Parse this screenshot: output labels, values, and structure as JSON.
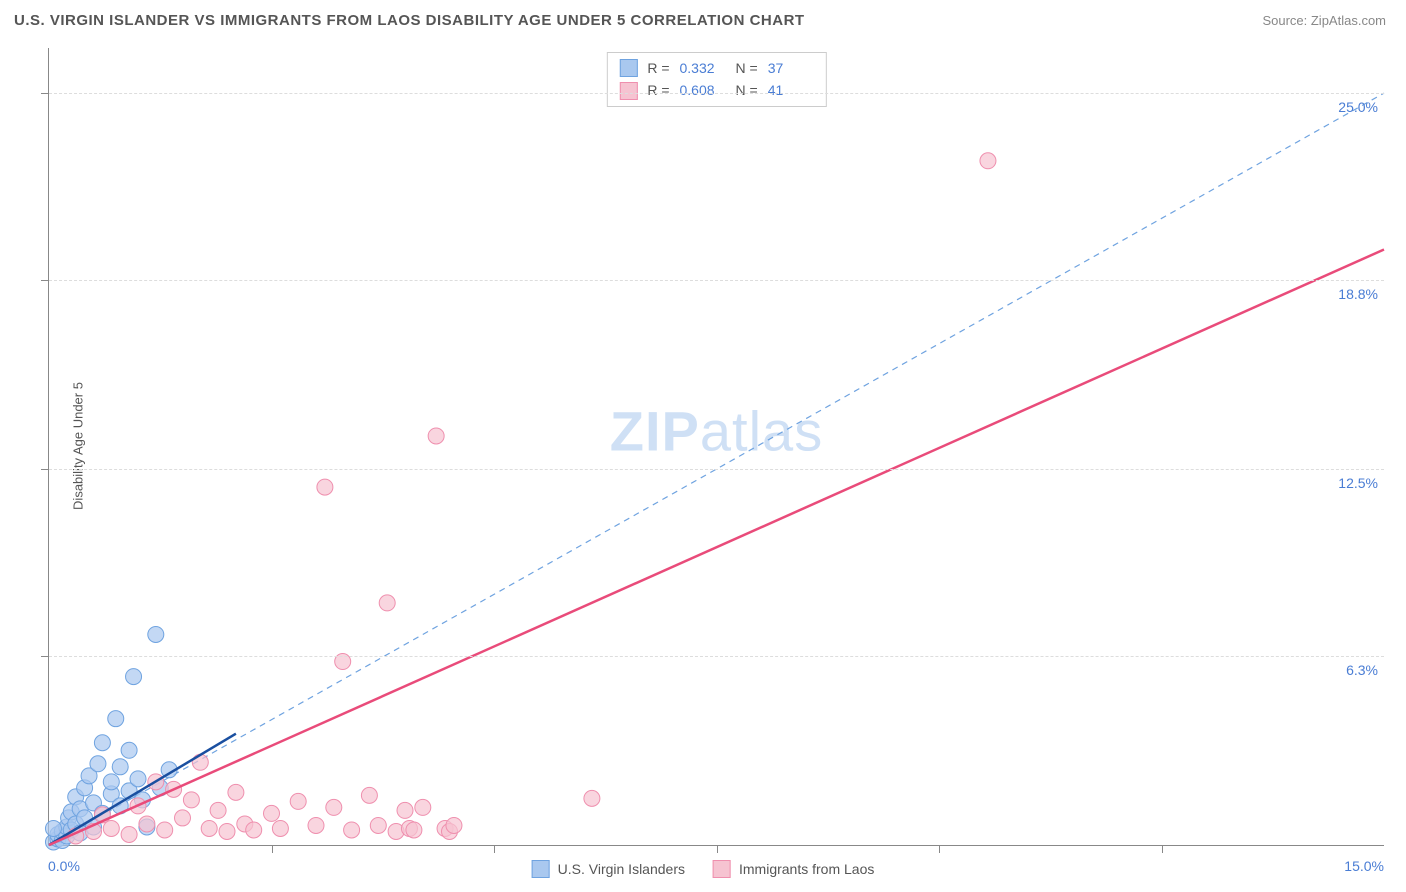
{
  "header": {
    "title": "U.S. VIRGIN ISLANDER VS IMMIGRANTS FROM LAOS DISABILITY AGE UNDER 5 CORRELATION CHART",
    "source": "Source: ZipAtlas.com"
  },
  "watermark": {
    "part1": "ZIP",
    "part2": "atlas"
  },
  "axes": {
    "ylabel": "Disability Age Under 5",
    "x_min": 0.0,
    "x_max": 15.0,
    "y_min": 0.0,
    "y_max": 26.5,
    "x_label_min": "0.0%",
    "x_label_max": "15.0%",
    "y_gridlines": [
      6.3,
      12.5,
      18.8,
      25.0
    ],
    "y_grid_labels": [
      "6.3%",
      "12.5%",
      "18.8%",
      "25.0%"
    ],
    "x_tick_positions": [
      2.5,
      5.0,
      7.5,
      10.0,
      12.5
    ],
    "y_tick_positions": [
      6.3,
      12.5,
      18.8,
      25.0
    ],
    "grid_color": "#dddddd",
    "axis_color": "#888888",
    "label_color": "#4a7dd4"
  },
  "series": [
    {
      "name": "U.S. Virgin Islanders",
      "color_fill": "#a9c8ef",
      "color_stroke": "#6fa3e0",
      "marker_radius": 8,
      "marker_opacity": 0.7,
      "R": "0.332",
      "N": "37",
      "trend": {
        "x1": 0.0,
        "y1": 0.0,
        "x2": 2.1,
        "y2": 3.7,
        "stroke": "#1a4fa0",
        "width": 2.5,
        "dash": ""
      },
      "points": [
        [
          0.05,
          0.1
        ],
        [
          0.1,
          0.2
        ],
        [
          0.1,
          0.35
        ],
        [
          0.15,
          0.15
        ],
        [
          0.15,
          0.45
        ],
        [
          0.2,
          0.3
        ],
        [
          0.2,
          0.6
        ],
        [
          0.22,
          0.9
        ],
        [
          0.25,
          0.5
        ],
        [
          0.25,
          1.1
        ],
        [
          0.3,
          0.7
        ],
        [
          0.3,
          1.6
        ],
        [
          0.35,
          0.4
        ],
        [
          0.35,
          1.2
        ],
        [
          0.4,
          0.9
        ],
        [
          0.4,
          1.9
        ],
        [
          0.45,
          2.3
        ],
        [
          0.5,
          0.6
        ],
        [
          0.5,
          1.4
        ],
        [
          0.55,
          2.7
        ],
        [
          0.6,
          1.05
        ],
        [
          0.6,
          3.4
        ],
        [
          0.7,
          1.7
        ],
        [
          0.7,
          2.1
        ],
        [
          0.75,
          4.2
        ],
        [
          0.8,
          1.3
        ],
        [
          0.8,
          2.6
        ],
        [
          0.9,
          1.8
        ],
        [
          0.9,
          3.15
        ],
        [
          0.95,
          5.6
        ],
        [
          1.0,
          2.2
        ],
        [
          1.05,
          1.5
        ],
        [
          1.2,
          7.0
        ],
        [
          1.1,
          0.6
        ],
        [
          1.25,
          1.9
        ],
        [
          1.35,
          2.5
        ],
        [
          0.05,
          0.55
        ]
      ]
    },
    {
      "name": "Immigrants from Laos",
      "color_fill": "#f6c3d1",
      "color_stroke": "#ef8fae",
      "marker_radius": 8,
      "marker_opacity": 0.7,
      "R": "0.608",
      "N": "41",
      "trend": {
        "x1": 0.0,
        "y1": 0.0,
        "x2": 15.0,
        "y2": 19.8,
        "stroke": "#e94b7a",
        "width": 2.5,
        "dash": ""
      },
      "points": [
        [
          0.3,
          0.3
        ],
        [
          0.5,
          0.45
        ],
        [
          0.6,
          1.0
        ],
        [
          0.7,
          0.55
        ],
        [
          0.9,
          0.35
        ],
        [
          1.0,
          1.3
        ],
        [
          1.1,
          0.7
        ],
        [
          1.2,
          2.1
        ],
        [
          1.3,
          0.5
        ],
        [
          1.4,
          1.85
        ],
        [
          1.5,
          0.9
        ],
        [
          1.6,
          1.5
        ],
        [
          1.7,
          2.75
        ],
        [
          1.8,
          0.55
        ],
        [
          1.9,
          1.15
        ],
        [
          2.0,
          0.45
        ],
        [
          2.1,
          1.75
        ],
        [
          2.2,
          0.7
        ],
        [
          2.3,
          0.5
        ],
        [
          2.5,
          1.05
        ],
        [
          2.6,
          0.55
        ],
        [
          2.8,
          1.45
        ],
        [
          3.0,
          0.65
        ],
        [
          3.2,
          1.25
        ],
        [
          3.3,
          6.1
        ],
        [
          3.4,
          0.5
        ],
        [
          3.6,
          1.65
        ],
        [
          3.7,
          0.65
        ],
        [
          3.8,
          8.05
        ],
        [
          3.9,
          0.45
        ],
        [
          4.0,
          1.15
        ],
        [
          4.05,
          0.55
        ],
        [
          4.1,
          0.5
        ],
        [
          4.2,
          1.25
        ],
        [
          4.35,
          13.6
        ],
        [
          4.45,
          0.55
        ],
        [
          4.5,
          0.45
        ],
        [
          4.55,
          0.65
        ],
        [
          6.1,
          1.55
        ],
        [
          10.55,
          22.75
        ],
        [
          3.1,
          11.9
        ]
      ]
    }
  ],
  "reference_line": {
    "x1": 0.0,
    "y1": 0.0,
    "x2": 15.0,
    "y2": 25.0,
    "stroke": "#6fa3e0",
    "width": 1.2,
    "dash": "6,5"
  },
  "top_legend": {
    "rows": [
      {
        "swatch_fill": "#a9c8ef",
        "swatch_stroke": "#6fa3e0",
        "R_label": "R  =",
        "R_val": "0.332",
        "N_label": "N  =",
        "N_val": "37"
      },
      {
        "swatch_fill": "#f6c3d1",
        "swatch_stroke": "#ef8fae",
        "R_label": "R  =",
        "R_val": "0.608",
        "N_label": "N  =",
        "N_val": "41"
      }
    ]
  },
  "bottom_legend": {
    "items": [
      {
        "swatch_fill": "#a9c8ef",
        "swatch_stroke": "#6fa3e0",
        "label": "U.S. Virgin Islanders"
      },
      {
        "swatch_fill": "#f6c3d1",
        "swatch_stroke": "#ef8fae",
        "label": "Immigrants from Laos"
      }
    ]
  }
}
